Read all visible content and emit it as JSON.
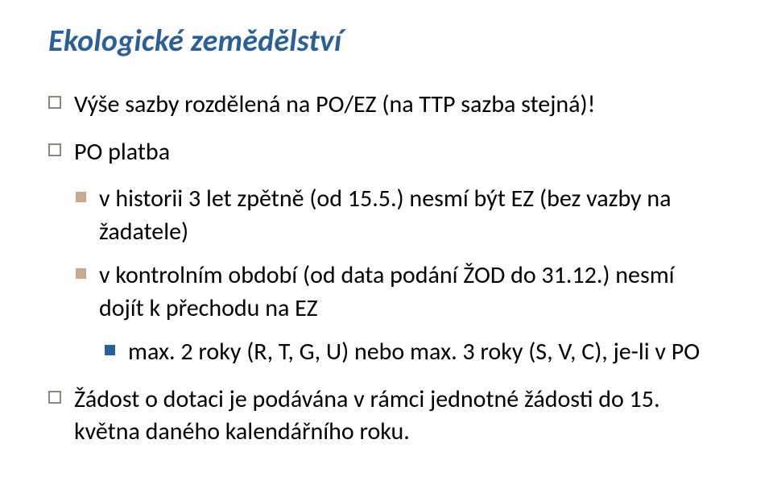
{
  "title": "Ekologické zemědělství",
  "bullets": {
    "b1": "Výše sazby rozdělená na PO/EZ (na TTP sazba stejná)!",
    "b2": "PO platba",
    "b2_1": "v historii 3 let zpětně (od 15.5.) nesmí být EZ (bez vazby na žadatele)",
    "b2_2": "v kontrolním období (od data podání ŽOD do 31.12.) nesmí dojít k přechodu na EZ",
    "b2_3": "max. 2 roky (R, T, G, U) nebo max. 3 roky (S, V, C), je-li v PO",
    "b3": "Žádost o dotaci je podávána v rámci jednotné žádosti do 15. května daného kalendářního roku."
  },
  "colors": {
    "title": "#2a6099",
    "l1_marker_border": "#888a7e",
    "l2_marker": "#c7a98e",
    "l3_marker": "#2a6099",
    "text": "#000000",
    "background": "#ffffff"
  },
  "typography": {
    "title_fontsize": 38,
    "title_style": "bold italic",
    "body_fontsize": 30,
    "font_family": "Gill Sans / Segoe UI"
  }
}
